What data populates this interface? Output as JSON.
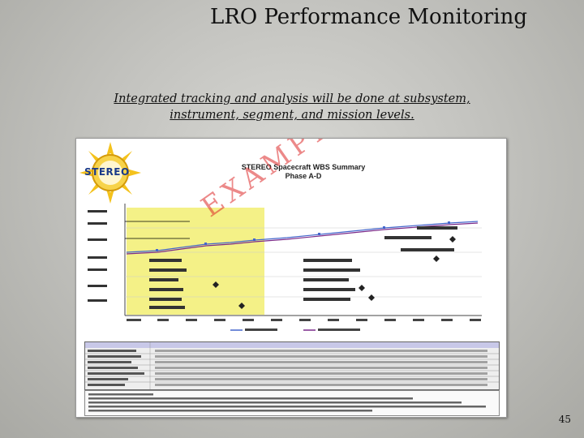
{
  "slide": {
    "title": "LRO Performance Monitoring",
    "subtitle_line1": "Integrated tracking and analysis will be done at subsystem,",
    "subtitle_line2": "instrument, segment, and mission levels.",
    "page_number": "45"
  },
  "embedded_image": {
    "logo_text": "STEREO",
    "chart_title_line1": "STEREO Spacecraft WBS Summary",
    "chart_title_line2": "Phase A-D",
    "watermark": "EXAMPLE",
    "highlight_color": "#f3f07a",
    "series_colors": {
      "current_plan": "#4466cc",
      "cumulative": "#7b2b8a"
    }
  }
}
